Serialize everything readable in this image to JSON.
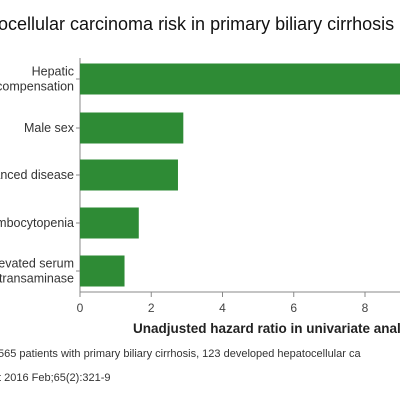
{
  "chart_data": {
    "type": "bar",
    "orientation": "horizontal",
    "title": "ocellular carcinoma risk in primary biliary cirrhosis",
    "categories": [
      [
        "Hepatic",
        "compensation"
      ],
      [
        "Male sex"
      ],
      [
        "anced disease"
      ],
      [
        "mbocytopenia"
      ],
      [
        "levated serum",
        "transaminase"
      ]
    ],
    "values": [
      9.2,
      2.9,
      2.75,
      1.65,
      1.25
    ],
    "xlabel": "Unadjusted hazard ratio in univariate analysis",
    "xlim": [
      0,
      9
    ],
    "xticks": [
      "0",
      "2",
      "4",
      "6",
      "8"
    ],
    "grid": false,
    "bar_color": "#2e8b35",
    "footnotes": [
      "565 patients with primary biliary cirrhosis, 123 developed hepatocellular ca",
      "t 2016 Feb;65(2):321-9"
    ]
  }
}
